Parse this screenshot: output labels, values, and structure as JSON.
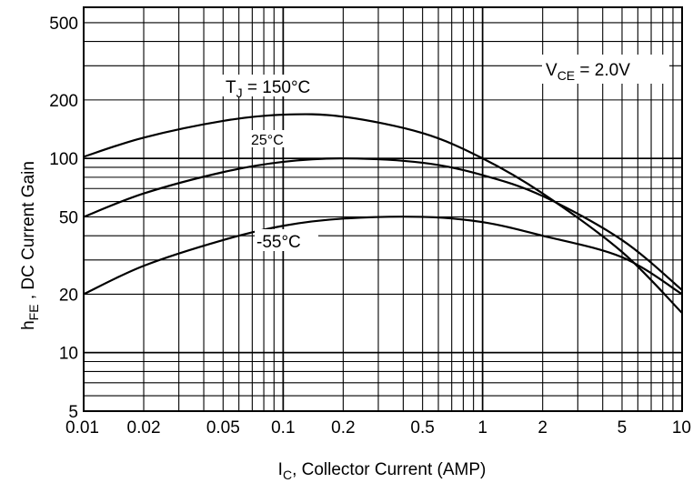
{
  "chart_data": {
    "type": "line",
    "xscale": "log",
    "yscale": "log",
    "xlim": [
      0.01,
      10
    ],
    "ylim": [
      5,
      600
    ],
    "grid": true,
    "xlabel": {
      "main": "I",
      "sub": "C",
      "rest": ", Collector Current (AMP)"
    },
    "ylabel": {
      "main": "h",
      "sub": "FE",
      "rest": " , DC Current Gain"
    },
    "x_ticks": [
      {
        "value": 0.01,
        "label": "0.01"
      },
      {
        "value": 0.02,
        "label": "0.02"
      },
      {
        "value": 0.05,
        "label": "0.05"
      },
      {
        "value": 0.1,
        "label": "0.1"
      },
      {
        "value": 0.2,
        "label": "0.2"
      },
      {
        "value": 0.5,
        "label": "0.5"
      },
      {
        "value": 1,
        "label": "1"
      },
      {
        "value": 2,
        "label": "2"
      },
      {
        "value": 5,
        "label": "5"
      },
      {
        "value": 10,
        "label": "10"
      }
    ],
    "y_ticks": [
      {
        "value": 5,
        "label": "5"
      },
      {
        "value": 10,
        "label": "10"
      },
      {
        "value": 20,
        "label": "20"
      },
      {
        "value": 50,
        "label": "50"
      },
      {
        "value": 100,
        "label": "100"
      },
      {
        "value": 200,
        "label": "200"
      },
      {
        "value": 500,
        "label": "500"
      }
    ],
    "annotation": {
      "main": "V",
      "sub": "CE",
      "rest": " = 2.0V"
    },
    "series": [
      {
        "name": "TJ = 150°C",
        "label": {
          "main": "T",
          "sub": "J",
          "rest": " = 150°C"
        },
        "x": [
          0.01,
          0.02,
          0.05,
          0.1,
          0.2,
          0.5,
          1,
          2,
          5,
          10
        ],
        "y": [
          102,
          128,
          156,
          168,
          164,
          135,
          100,
          66,
          33,
          16
        ]
      },
      {
        "name": "25°C",
        "label": {
          "main": "25°C",
          "sub": "",
          "rest": ""
        },
        "x": [
          0.01,
          0.02,
          0.05,
          0.1,
          0.2,
          0.5,
          1,
          2,
          5,
          10
        ],
        "y": [
          50,
          66,
          85,
          96,
          100,
          95,
          82,
          64,
          38,
          21
        ]
      },
      {
        "name": "-55°C",
        "label": {
          "main": "-55°C",
          "sub": "",
          "rest": ""
        },
        "x": [
          0.01,
          0.02,
          0.05,
          0.1,
          0.2,
          0.5,
          1,
          2,
          5,
          10
        ],
        "y": [
          20,
          28,
          38,
          45,
          49,
          50,
          47,
          40,
          31,
          20
        ]
      }
    ]
  }
}
